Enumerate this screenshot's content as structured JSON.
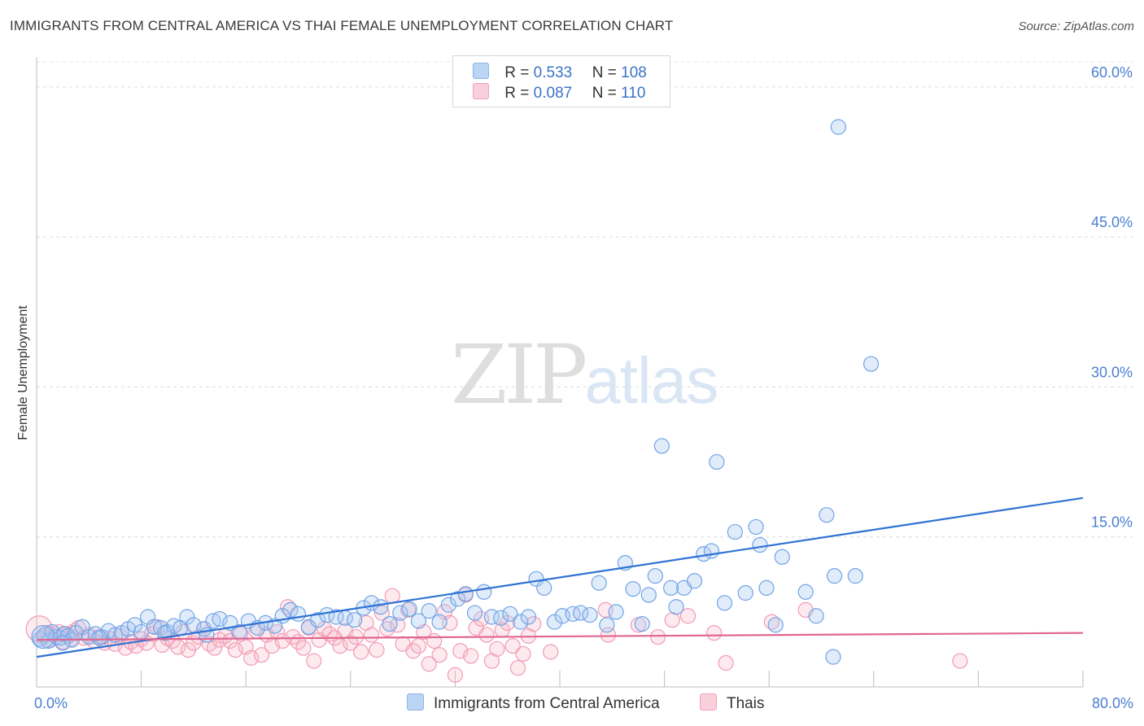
{
  "header": {
    "title": "IMMIGRANTS FROM CENTRAL AMERICA VS THAI FEMALE UNEMPLOYMENT CORRELATION CHART",
    "source": "Source: ZipAtlas.com"
  },
  "watermark": {
    "zip": "ZIP",
    "atlas": "atlas"
  },
  "legend_top": [
    {
      "r_label": "R =",
      "r_value": "0.533",
      "n_label": "N =",
      "n_value": "108",
      "color": "#a8c8f0"
    },
    {
      "r_label": "R =",
      "r_value": "0.087",
      "n_label": "N =",
      "n_value": "110",
      "color": "#f6b8cb"
    }
  ],
  "chart_data": {
    "type": "scatter",
    "title": "IMMIGRANTS FROM CENTRAL AMERICA VS THAI FEMALE UNEMPLOYMENT CORRELATION CHART",
    "xlabel": "",
    "ylabel": "Female Unemployment",
    "xlim": [
      0,
      80
    ],
    "ylim": [
      0,
      63
    ],
    "x_tick_labels": [
      "0.0%",
      "80.0%"
    ],
    "y_ticks": [
      15,
      30,
      45,
      60
    ],
    "y_tick_labels": [
      "15.0%",
      "30.0%",
      "45.0%",
      "60.0%"
    ],
    "grid": "horizontal dashed",
    "legend": "top-center and bottom-center",
    "series": [
      {
        "name": "Immigrants from Central America",
        "color": "#6fa3e6",
        "line_color": "#2f72d4",
        "trend": {
          "x": [
            0,
            80
          ],
          "y": [
            3.0,
            18.9
          ]
        },
        "points": [
          [
            0.3,
            4.8
          ],
          [
            0.6,
            5.2
          ],
          [
            0.9,
            4.6
          ],
          [
            1.2,
            5.5
          ],
          [
            1.5,
            5.0
          ],
          [
            1.8,
            4.9
          ],
          [
            2.1,
            5.3
          ],
          [
            2.4,
            5.1
          ],
          [
            2.7,
            4.7
          ],
          [
            3.0,
            5.4
          ],
          [
            3.5,
            6.0
          ],
          [
            4.0,
            5.0
          ],
          [
            4.5,
            5.3
          ],
          [
            5.0,
            5.0
          ],
          [
            5.5,
            5.6
          ],
          [
            6.0,
            5.2
          ],
          [
            6.5,
            5.4
          ],
          [
            7.0,
            5.8
          ],
          [
            7.5,
            6.2
          ],
          [
            8.0,
            5.5
          ],
          [
            8.5,
            7.0
          ],
          [
            9.0,
            6.0
          ],
          [
            9.5,
            5.9
          ],
          [
            10.0,
            5.5
          ],
          [
            10.5,
            6.1
          ],
          [
            11.0,
            5.9
          ],
          [
            11.5,
            7.0
          ],
          [
            12.0,
            6.2
          ],
          [
            12.8,
            5.8
          ],
          [
            13.5,
            6.6
          ],
          [
            14.0,
            6.8
          ],
          [
            14.8,
            6.4
          ],
          [
            15.5,
            5.5
          ],
          [
            16.2,
            6.6
          ],
          [
            16.9,
            5.9
          ],
          [
            17.5,
            6.4
          ],
          [
            18.2,
            6.1
          ],
          [
            18.8,
            7.1
          ],
          [
            19.4,
            7.7
          ],
          [
            20.0,
            7.3
          ],
          [
            20.8,
            6.0
          ],
          [
            21.5,
            6.7
          ],
          [
            22.2,
            7.2
          ],
          [
            22.9,
            7.0
          ],
          [
            23.6,
            6.9
          ],
          [
            24.3,
            6.7
          ],
          [
            25.0,
            7.9
          ],
          [
            25.6,
            8.4
          ],
          [
            26.3,
            8.0
          ],
          [
            27.0,
            6.3
          ],
          [
            27.8,
            7.4
          ],
          [
            28.5,
            7.8
          ],
          [
            29.2,
            6.6
          ],
          [
            30.0,
            7.6
          ],
          [
            30.8,
            6.5
          ],
          [
            31.5,
            8.2
          ],
          [
            32.2,
            8.8
          ],
          [
            32.8,
            9.3
          ],
          [
            33.5,
            7.4
          ],
          [
            34.2,
            9.5
          ],
          [
            34.8,
            7.0
          ],
          [
            35.5,
            6.9
          ],
          [
            36.2,
            7.3
          ],
          [
            37.0,
            6.5
          ],
          [
            37.6,
            7.0
          ],
          [
            38.2,
            10.8
          ],
          [
            38.8,
            9.9
          ],
          [
            39.6,
            6.5
          ],
          [
            40.2,
            7.1
          ],
          [
            41.0,
            7.3
          ],
          [
            41.6,
            7.4
          ],
          [
            42.3,
            7.2
          ],
          [
            43.0,
            10.4
          ],
          [
            43.6,
            6.2
          ],
          [
            44.3,
            7.5
          ],
          [
            45.0,
            12.4
          ],
          [
            45.6,
            9.8
          ],
          [
            46.3,
            6.3
          ],
          [
            46.8,
            9.2
          ],
          [
            47.3,
            11.1
          ],
          [
            47.8,
            24.1
          ],
          [
            48.5,
            9.9
          ],
          [
            48.9,
            8.0
          ],
          [
            49.5,
            9.9
          ],
          [
            50.3,
            10.6
          ],
          [
            51.0,
            13.3
          ],
          [
            51.6,
            13.6
          ],
          [
            52.0,
            22.5
          ],
          [
            52.6,
            8.4
          ],
          [
            53.4,
            15.5
          ],
          [
            54.2,
            9.4
          ],
          [
            55.0,
            16.0
          ],
          [
            55.3,
            14.2
          ],
          [
            55.8,
            9.9
          ],
          [
            56.5,
            6.2
          ],
          [
            57.0,
            13.0
          ],
          [
            58.8,
            9.5
          ],
          [
            59.6,
            7.1
          ],
          [
            60.4,
            17.2
          ],
          [
            60.9,
            3.0
          ],
          [
            61.0,
            11.1
          ],
          [
            62.6,
            11.1
          ],
          [
            61.3,
            56.0
          ],
          [
            63.8,
            32.3
          ],
          [
            2.0,
            4.4
          ],
          [
            4.8,
            4.9
          ],
          [
            9.8,
            5.4
          ],
          [
            13.0,
            5.2
          ]
        ]
      },
      {
        "name": "Thais",
        "color": "#f29ab5",
        "line_color": "#e0678f",
        "trend": {
          "x": [
            0,
            80
          ],
          "y": [
            4.7,
            5.4
          ]
        },
        "points": [
          [
            0.2,
            5.8
          ],
          [
            0.5,
            5.0
          ],
          [
            0.8,
            5.4
          ],
          [
            1.1,
            4.7
          ],
          [
            1.4,
            5.2
          ],
          [
            1.7,
            5.5
          ],
          [
            2.0,
            4.5
          ],
          [
            2.3,
            5.3
          ],
          [
            2.6,
            4.8
          ],
          [
            2.9,
            5.6
          ],
          [
            3.2,
            5.9
          ],
          [
            3.6,
            4.9
          ],
          [
            4.0,
            5.2
          ],
          [
            4.4,
            4.6
          ],
          [
            4.8,
            5.0
          ],
          [
            5.2,
            4.4
          ],
          [
            5.6,
            4.8
          ],
          [
            6.0,
            4.3
          ],
          [
            6.4,
            5.1
          ],
          [
            6.8,
            3.9
          ],
          [
            7.2,
            4.5
          ],
          [
            7.6,
            4.1
          ],
          [
            8.0,
            4.8
          ],
          [
            8.4,
            4.4
          ],
          [
            8.8,
            5.3
          ],
          [
            9.2,
            6.0
          ],
          [
            9.6,
            4.2
          ],
          [
            10.0,
            4.9
          ],
          [
            10.4,
            4.6
          ],
          [
            10.8,
            4.0
          ],
          [
            11.2,
            5.5
          ],
          [
            11.6,
            3.7
          ],
          [
            12.0,
            4.4
          ],
          [
            12.4,
            5.0
          ],
          [
            12.8,
            5.8
          ],
          [
            13.2,
            4.3
          ],
          [
            13.6,
            3.9
          ],
          [
            14.0,
            4.7
          ],
          [
            14.4,
            5.1
          ],
          [
            14.8,
            4.6
          ],
          [
            15.2,
            3.7
          ],
          [
            15.6,
            5.3
          ],
          [
            16.0,
            4.0
          ],
          [
            16.4,
            2.9
          ],
          [
            16.8,
            5.6
          ],
          [
            17.2,
            3.2
          ],
          [
            17.6,
            5.2
          ],
          [
            18.0,
            4.1
          ],
          [
            18.4,
            5.5
          ],
          [
            18.8,
            4.6
          ],
          [
            19.2,
            8.0
          ],
          [
            19.6,
            5.0
          ],
          [
            20.0,
            4.5
          ],
          [
            20.4,
            3.9
          ],
          [
            20.8,
            5.9
          ],
          [
            21.2,
            2.6
          ],
          [
            21.6,
            4.7
          ],
          [
            22.0,
            5.8
          ],
          [
            22.4,
            5.3
          ],
          [
            22.8,
            4.9
          ],
          [
            23.2,
            4.1
          ],
          [
            23.6,
            5.6
          ],
          [
            24.0,
            4.4
          ],
          [
            24.4,
            5.0
          ],
          [
            24.8,
            3.5
          ],
          [
            25.2,
            6.4
          ],
          [
            25.6,
            5.2
          ],
          [
            26.0,
            3.7
          ],
          [
            26.4,
            7.4
          ],
          [
            26.8,
            5.8
          ],
          [
            27.2,
            9.1
          ],
          [
            27.6,
            6.2
          ],
          [
            28.0,
            4.3
          ],
          [
            28.4,
            7.7
          ],
          [
            28.8,
            3.6
          ],
          [
            29.2,
            4.1
          ],
          [
            29.6,
            5.5
          ],
          [
            30.0,
            2.3
          ],
          [
            30.4,
            4.6
          ],
          [
            30.8,
            3.2
          ],
          [
            31.2,
            7.5
          ],
          [
            31.6,
            6.4
          ],
          [
            32.0,
            1.2
          ],
          [
            32.4,
            3.6
          ],
          [
            32.8,
            9.2
          ],
          [
            33.2,
            3.1
          ],
          [
            33.6,
            5.9
          ],
          [
            34.0,
            6.8
          ],
          [
            34.4,
            5.2
          ],
          [
            34.8,
            2.6
          ],
          [
            35.2,
            3.8
          ],
          [
            35.6,
            5.7
          ],
          [
            36.0,
            6.4
          ],
          [
            36.4,
            4.1
          ],
          [
            36.8,
            1.9
          ],
          [
            37.2,
            3.3
          ],
          [
            37.6,
            5.1
          ],
          [
            38.0,
            6.3
          ],
          [
            39.3,
            3.5
          ],
          [
            43.5,
            7.7
          ],
          [
            43.7,
            5.2
          ],
          [
            46.0,
            6.2
          ],
          [
            47.5,
            5.0
          ],
          [
            48.6,
            6.7
          ],
          [
            49.8,
            7.1
          ],
          [
            51.8,
            5.4
          ],
          [
            52.7,
            2.4
          ],
          [
            56.2,
            6.5
          ],
          [
            58.8,
            7.7
          ],
          [
            70.6,
            2.6
          ]
        ]
      }
    ]
  },
  "legend_bottom": [
    {
      "label": "Immigrants from Central America",
      "color": "#a8c8f0"
    },
    {
      "label": "Thais",
      "color": "#f6b8cb"
    }
  ]
}
